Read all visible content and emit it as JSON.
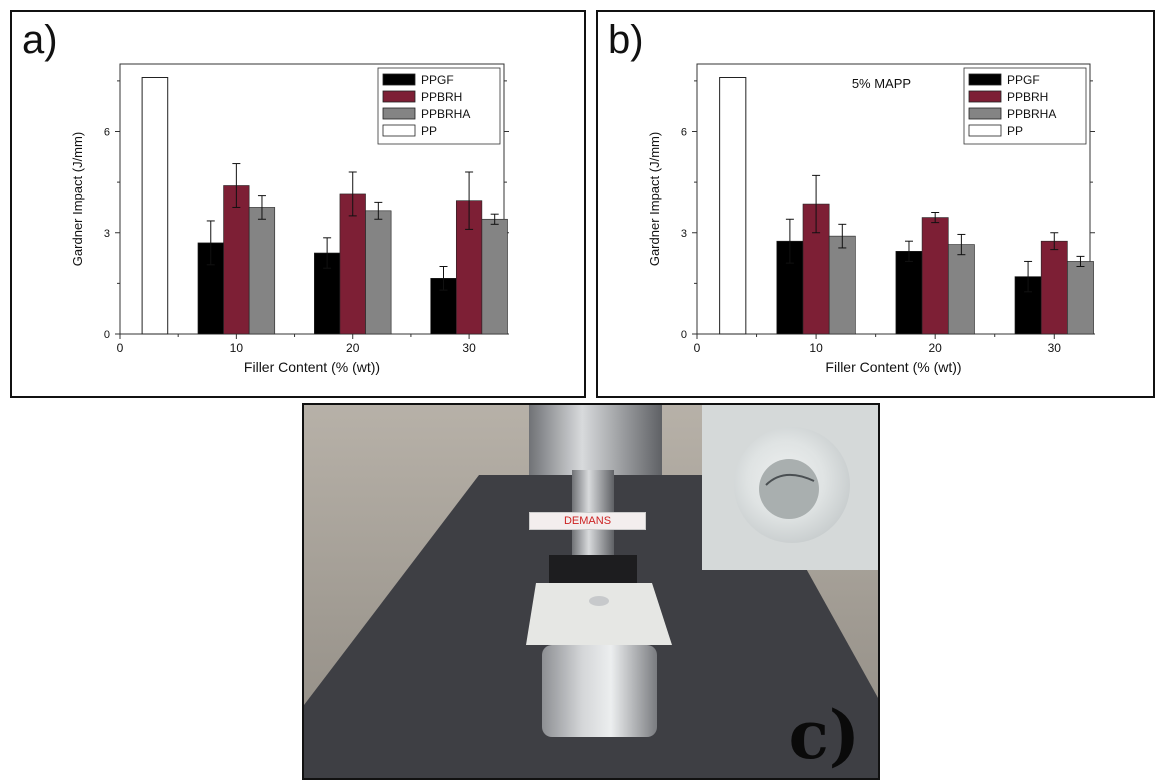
{
  "chart_data": [
    {
      "type": "bar",
      "panel_label": "a)",
      "annotation": "",
      "xlabel": "Filler Content (% (wt))",
      "ylabel": "Gardner Impact (J/mm)",
      "xlim": [
        0,
        33
      ],
      "ylim": [
        0,
        8
      ],
      "xticks": [
        0,
        10,
        20,
        30
      ],
      "yticks": [
        0,
        3,
        6
      ],
      "legend_position": "top-right",
      "reference_bar": {
        "name": "PP",
        "x": 3,
        "value": 7.6,
        "color": "#ffffff"
      },
      "categories": [
        10,
        20,
        30
      ],
      "series": [
        {
          "name": "PPGF",
          "color": "#000000",
          "values": [
            2.7,
            2.4,
            1.65
          ],
          "errors": [
            0.65,
            0.45,
            0.35
          ]
        },
        {
          "name": "PPBRH",
          "color": "#7d1f35",
          "values": [
            4.4,
            4.15,
            3.95
          ],
          "errors": [
            0.65,
            0.65,
            0.85
          ]
        },
        {
          "name": "PPBRHA",
          "color": "#848484",
          "values": [
            3.75,
            3.65,
            3.4
          ],
          "errors": [
            0.35,
            0.25,
            0.15
          ]
        }
      ]
    },
    {
      "type": "bar",
      "panel_label": "b)",
      "annotation": "5% MAPP",
      "xlabel": "Filler Content (% (wt))",
      "ylabel": "Gardner Impact (J/mm)",
      "xlim": [
        0,
        33
      ],
      "ylim": [
        0,
        8
      ],
      "xticks": [
        0,
        10,
        20,
        30
      ],
      "yticks": [
        0,
        3,
        6
      ],
      "legend_position": "top-right",
      "reference_bar": {
        "name": "PP",
        "x": 3,
        "value": 7.6,
        "color": "#ffffff"
      },
      "categories": [
        10,
        20,
        30
      ],
      "series": [
        {
          "name": "PPGF",
          "color": "#000000",
          "values": [
            2.75,
            2.45,
            1.7
          ],
          "errors": [
            0.65,
            0.3,
            0.45
          ]
        },
        {
          "name": "PPBRH",
          "color": "#7d1f35",
          "values": [
            3.85,
            3.45,
            2.75
          ],
          "errors": [
            0.85,
            0.15,
            0.25
          ]
        },
        {
          "name": "PPBRHA",
          "color": "#848484",
          "values": [
            2.9,
            2.65,
            2.15
          ],
          "errors": [
            0.35,
            0.3,
            0.15
          ]
        }
      ]
    }
  ],
  "photo": {
    "panel_label": "c)",
    "tag_text": "DEMANS"
  }
}
